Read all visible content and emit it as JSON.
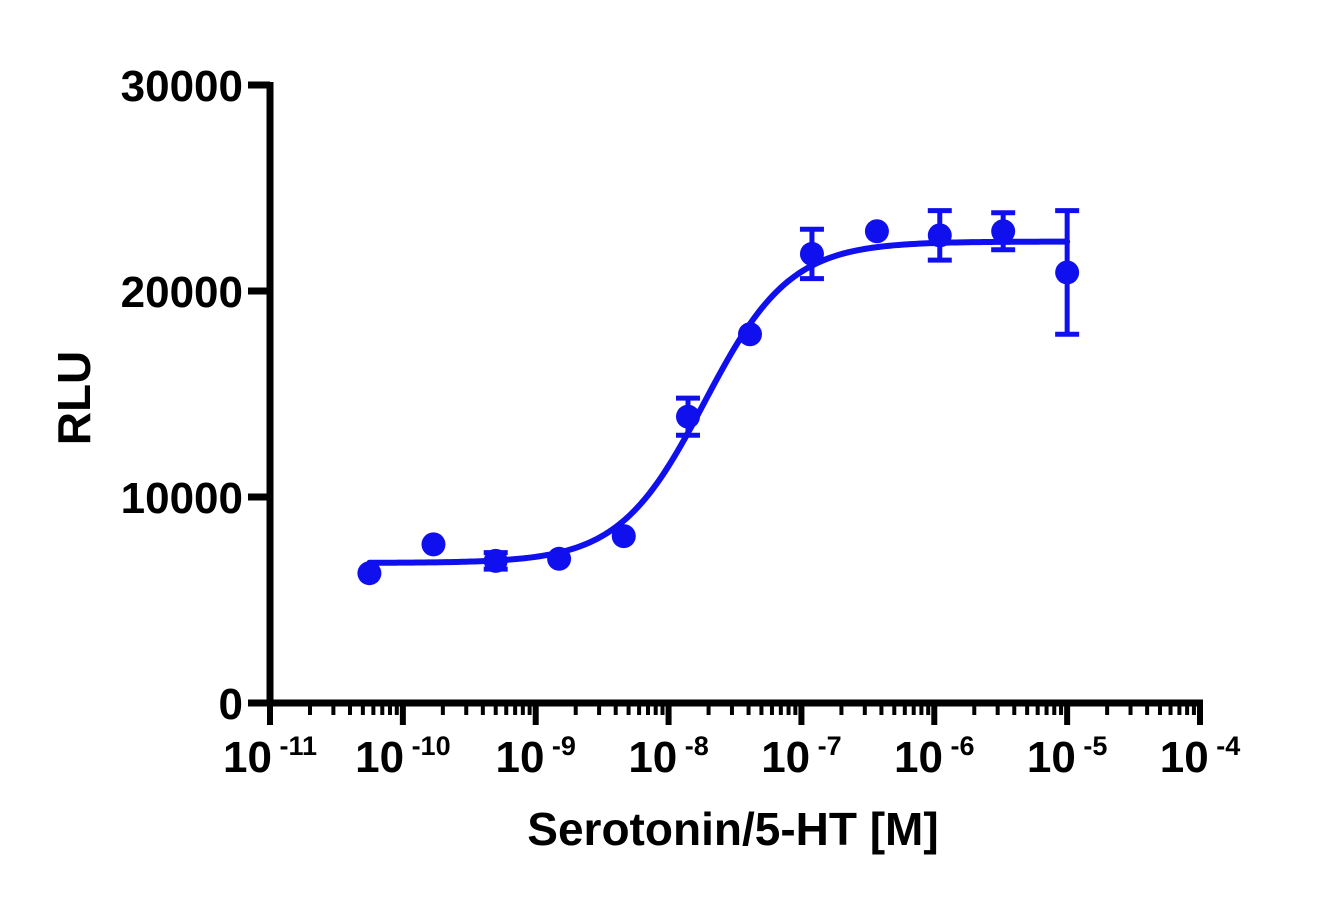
{
  "chart_data": {
    "type": "scatter",
    "xlabel": "Serotonin/5-HT [M]",
    "ylabel": "RLU",
    "x_scale": "log10",
    "xlim": [
      1e-11,
      0.0001
    ],
    "ylim": [
      0,
      30000
    ],
    "x_ticks": [
      {
        "base": "10",
        "exp": "-11",
        "value": 1e-11
      },
      {
        "base": "10",
        "exp": "-10",
        "value": 1e-10
      },
      {
        "base": "10",
        "exp": "-9",
        "value": 1e-09
      },
      {
        "base": "10",
        "exp": "-8",
        "value": 1e-08
      },
      {
        "base": "10",
        "exp": "-7",
        "value": 1e-07
      },
      {
        "base": "10",
        "exp": "-6",
        "value": 1e-06
      },
      {
        "base": "10",
        "exp": "-5",
        "value": 1e-05
      },
      {
        "base": "10",
        "exp": "-4",
        "value": 0.0001
      }
    ],
    "y_ticks": [
      {
        "label": "0",
        "value": 0
      },
      {
        "label": "10000",
        "value": 10000
      },
      {
        "label": "20000",
        "value": 20000
      },
      {
        "label": "30000",
        "value": 30000
      }
    ],
    "series": [
      {
        "color": "#1010ee",
        "points": [
          {
            "x": 5.6e-11,
            "y": 6300,
            "err": 0
          },
          {
            "x": 1.7e-10,
            "y": 7700,
            "err": 0
          },
          {
            "x": 5e-10,
            "y": 6900,
            "err": 400
          },
          {
            "x": 1.5e-09,
            "y": 7000,
            "err": 0
          },
          {
            "x": 4.6e-09,
            "y": 8100,
            "err": 0
          },
          {
            "x": 1.4e-08,
            "y": 13900,
            "err": 900
          },
          {
            "x": 4.1e-08,
            "y": 17900,
            "err": 0
          },
          {
            "x": 1.2e-07,
            "y": 21800,
            "err": 1200
          },
          {
            "x": 3.7e-07,
            "y": 22900,
            "err": 0
          },
          {
            "x": 1.1e-06,
            "y": 22700,
            "err": 1200
          },
          {
            "x": 3.3e-06,
            "y": 22900,
            "err": 900
          },
          {
            "x": 1e-05,
            "y": 20900,
            "err": 3000
          }
        ],
        "fit": {
          "model": "four-parameter logistic",
          "bottom": 6800,
          "top": 22400,
          "logEC50": -7.73,
          "hill": 1.35
        }
      }
    ]
  }
}
